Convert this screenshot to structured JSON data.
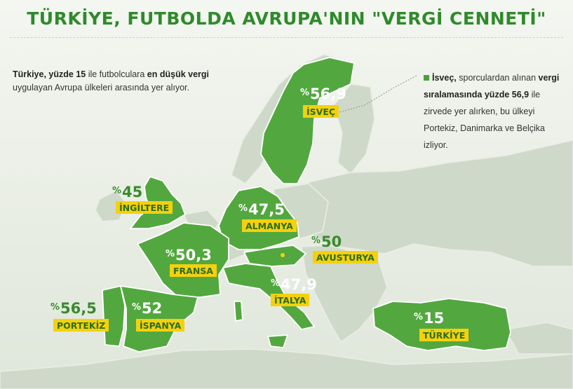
{
  "header": {
    "title": "TÜRKİYE, FUTBOLDA AVRUPA'NIN \"VERGİ CENNETİ\""
  },
  "intro": {
    "part1": "Türkiye, yüzde 15",
    "part2": " ile futbolculara ",
    "part3": "en düşük vergi",
    "part4": " uygulayan Avrupa ülkeleri arasında yer alıyor."
  },
  "note": {
    "part1": "İsveç,",
    "part2": " sporculardan alınan ",
    "part3": "vergi sıralamasında yüzde 56,9",
    "part4": " ile zirvede yer alırken, bu ülkeyi Portekiz, Danimarka ve Belçika izliyor."
  },
  "countries": [
    {
      "id": "sweden",
      "name": "İSVEÇ",
      "sign": "%",
      "value": "56,9"
    },
    {
      "id": "uk",
      "name": "İNGİLTERE",
      "sign": "%",
      "value": "45"
    },
    {
      "id": "germany",
      "name": "ALMANYA",
      "sign": "%",
      "value": "47,5"
    },
    {
      "id": "austria",
      "name": "AVUSTURYA",
      "sign": "%",
      "value": "50"
    },
    {
      "id": "france",
      "name": "FRANSA",
      "sign": "%",
      "value": "50,3"
    },
    {
      "id": "italy",
      "name": "İTALYA",
      "sign": "%",
      "value": "47,9"
    },
    {
      "id": "portugal",
      "name": "PORTEKİZ",
      "sign": "%",
      "value": "56,5"
    },
    {
      "id": "spain",
      "name": "İSPANYA",
      "sign": "%",
      "value": "52"
    },
    {
      "id": "turkey",
      "name": "TÜRKİYE",
      "sign": "%",
      "value": "15"
    }
  ],
  "colors": {
    "highlight": "#52a83f",
    "highlight_border": "#ffffff",
    "land": "#c9d4c2",
    "sea": "#e6ebe1",
    "label_bg": "#f5d10c",
    "title": "#2f8a2c"
  }
}
